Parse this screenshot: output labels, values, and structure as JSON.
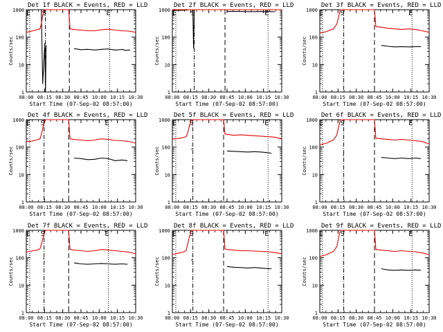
{
  "figure": {
    "xlabel": "Start Time (07-Sep-02 08:57:00)",
    "ylabel": "Counts/sec",
    "x_tick_labels": [
      "08:00",
      "08:15",
      "08:30",
      "08:45",
      "10:00",
      "10:15",
      "10:30"
    ],
    "y_tick_labels": [
      "1",
      "10",
      "100",
      "1000"
    ],
    "marker_labels": [
      "E",
      "S",
      "E"
    ],
    "colors": {
      "events": "#000000",
      "lld": "#e00000",
      "axes": "#000000"
    }
  },
  "chart_data": [
    {
      "type": "line",
      "title": "Det 1f BLACK = Events, RED = LLD",
      "ylim": [
        1,
        1000
      ],
      "y_scale": "log",
      "x_range_minutes": [
        0,
        160
      ],
      "markers": {
        "dotted": [
          5,
          122
        ],
        "dashdot": [
          28
        ],
        "dashed": [
          63
        ]
      },
      "series": [
        {
          "name": "Events",
          "color": "#000000",
          "x": [
            0,
            2,
            20,
            22,
            24,
            27,
            28,
            29,
            63,
            64,
            70,
            80,
            90,
            100,
            110,
            120,
            130,
            138,
            140,
            145,
            150,
            152
          ],
          "y": [
            1000,
            1000,
            1000,
            1000,
            2,
            60,
            1,
            50,
            null,
            null,
            38,
            35,
            36,
            34,
            36,
            37,
            34,
            35,
            36,
            33,
            34,
            34
          ]
        },
        {
          "name": "LLD",
          "color": "#e00000",
          "x": [
            0,
            5,
            10,
            15,
            20,
            22,
            24,
            26,
            28,
            30,
            40,
            50,
            60,
            62,
            64,
            70,
            80,
            90,
            100,
            110,
            120,
            130,
            140,
            150,
            160
          ],
          "y": [
            150,
            160,
            170,
            185,
            200,
            300,
            600,
            1000,
            1000,
            1000,
            1000,
            1000,
            1000,
            1000,
            200,
            190,
            180,
            170,
            170,
            185,
            195,
            180,
            170,
            165,
            150
          ]
        }
      ]
    },
    {
      "type": "line",
      "title": "Det 2f BLACK = Events, RED = LLD",
      "ylim": [
        1,
        1000
      ],
      "y_scale": "log",
      "x_range_minutes": [
        0,
        160
      ],
      "markers": {
        "dotted": [
          5,
          140
        ],
        "dashdot": [
          32
        ],
        "dashed": [
          77
        ]
      },
      "series": [
        {
          "name": "Events",
          "color": "#000000",
          "x": [
            0,
            10,
            20,
            25,
            28,
            30,
            31,
            32,
            33,
            77,
            78,
            80,
            90,
            100,
            110,
            120,
            130,
            140,
            145,
            150
          ],
          "y": [
            950,
            950,
            960,
            1000,
            1000,
            1000,
            40,
            1000,
            1000,
            null,
            null,
            870,
            860,
            860,
            850,
            850,
            860,
            850,
            850,
            840
          ]
        },
        {
          "name": "LLD",
          "color": "#e00000",
          "x": [
            0,
            10,
            20,
            25,
            28,
            30,
            40,
            50,
            60,
            70,
            77,
            80,
            90,
            100,
            110,
            120,
            130,
            140,
            150,
            160
          ],
          "y": [
            1000,
            1000,
            1000,
            1000,
            1000,
            1000,
            1000,
            1000,
            1000,
            1000,
            1000,
            1000,
            1000,
            1000,
            1000,
            1000,
            1000,
            1000,
            1000,
            1000
          ]
        }
      ]
    },
    {
      "type": "line",
      "title": "Det 3f BLACK = Events, RED = LLD",
      "ylim": [
        1,
        1000
      ],
      "y_scale": "log",
      "x_range_minutes": [
        0,
        160
      ],
      "markers": {
        "dotted": [
          4,
          135
        ],
        "dashdot": [
          35
        ],
        "dashed": [
          80
        ]
      },
      "series": [
        {
          "name": "Events",
          "color": "#000000",
          "x": [
            34,
            35,
            80,
            82,
            90,
            100,
            110,
            120,
            130,
            140,
            148
          ],
          "y": [
            60,
            55,
            null,
            null,
            50,
            46,
            44,
            45,
            44,
            45,
            45
          ]
        },
        {
          "name": "LLD",
          "color": "#e00000",
          "x": [
            0,
            5,
            10,
            15,
            20,
            25,
            28,
            30,
            35,
            40,
            50,
            60,
            70,
            80,
            82,
            90,
            100,
            110,
            120,
            130,
            140,
            150,
            160
          ],
          "y": [
            140,
            150,
            160,
            180,
            200,
            300,
            600,
            1000,
            1000,
            1000,
            1000,
            1000,
            1000,
            1000,
            240,
            230,
            210,
            200,
            190,
            200,
            190,
            170,
            150
          ]
        }
      ]
    },
    {
      "type": "line",
      "title": "Det 4f BLACK = Events, RED = LLD",
      "ylim": [
        1,
        1000
      ],
      "y_scale": "log",
      "x_range_minutes": [
        0,
        160
      ],
      "markers": {
        "dotted": [
          5,
          120
        ],
        "dashdot": [
          26
        ],
        "dashed": [
          62
        ]
      },
      "series": [
        {
          "name": "Events",
          "color": "#000000",
          "x": [
            25,
            26,
            62,
            64,
            70,
            80,
            90,
            100,
            110,
            120,
            130,
            140,
            148
          ],
          "y": [
            60,
            55,
            null,
            null,
            40,
            38,
            35,
            36,
            40,
            38,
            32,
            34,
            32
          ]
        },
        {
          "name": "LLD",
          "color": "#e00000",
          "x": [
            0,
            5,
            10,
            15,
            20,
            22,
            25,
            28,
            30,
            40,
            50,
            60,
            62,
            64,
            70,
            80,
            90,
            100,
            110,
            120,
            130,
            140,
            150,
            160
          ],
          "y": [
            160,
            160,
            170,
            180,
            200,
            280,
            600,
            1000,
            1000,
            1000,
            1000,
            1000,
            1000,
            200,
            190,
            180,
            170,
            180,
            200,
            190,
            175,
            170,
            160,
            140
          ]
        }
      ]
    },
    {
      "type": "line",
      "title": "Det 5f BLACK = Events, RED = LLD",
      "ylim": [
        1,
        1000
      ],
      "y_scale": "log",
      "x_range_minutes": [
        0,
        160
      ],
      "markers": {
        "dotted": [
          5,
          140
        ],
        "dashdot": [
          30
        ],
        "dashed": [
          75
        ]
      },
      "series": [
        {
          "name": "Events",
          "color": "#000000",
          "x": [
            28,
            30,
            75,
            77,
            80,
            90,
            100,
            110,
            120,
            130,
            140,
            145
          ],
          "y": [
            80,
            90,
            null,
            null,
            72,
            70,
            68,
            66,
            68,
            66,
            62,
            60
          ]
        },
        {
          "name": "LLD",
          "color": "#e00000",
          "x": [
            0,
            5,
            10,
            15,
            20,
            22,
            25,
            28,
            30,
            40,
            50,
            60,
            70,
            75,
            77,
            80,
            90,
            100,
            110,
            120,
            130,
            140,
            150,
            160
          ],
          "y": [
            200,
            200,
            210,
            220,
            240,
            300,
            600,
            1000,
            1000,
            1000,
            1000,
            1000,
            1000,
            1000,
            300,
            290,
            270,
            280,
            270,
            260,
            250,
            240,
            230,
            200
          ]
        }
      ]
    },
    {
      "type": "line",
      "title": "Det 6f BLACK = Events, RED = LLD",
      "ylim": [
        1,
        1000
      ],
      "y_scale": "log",
      "x_range_minutes": [
        0,
        160
      ],
      "markers": {
        "dotted": [
          4,
          135
        ],
        "dashdot": [
          35
        ],
        "dashed": [
          80
        ]
      },
      "series": [
        {
          "name": "Events",
          "color": "#000000",
          "x": [
            34,
            35,
            80,
            82,
            90,
            100,
            110,
            120,
            130,
            140,
            148
          ],
          "y": [
            55,
            50,
            null,
            null,
            42,
            40,
            38,
            40,
            38,
            40,
            38
          ]
        },
        {
          "name": "LLD",
          "color": "#e00000",
          "x": [
            0,
            5,
            10,
            15,
            20,
            25,
            28,
            30,
            35,
            40,
            50,
            60,
            70,
            80,
            82,
            90,
            100,
            110,
            120,
            130,
            140,
            150,
            160
          ],
          "y": [
            120,
            130,
            140,
            160,
            180,
            280,
            600,
            1000,
            1000,
            1000,
            1000,
            1000,
            1000,
            1000,
            210,
            200,
            190,
            180,
            190,
            180,
            170,
            160,
            130
          ]
        }
      ]
    },
    {
      "type": "line",
      "title": "Det 7f BLACK = Events, RED = LLD",
      "ylim": [
        1,
        1000
      ],
      "y_scale": "log",
      "x_range_minutes": [
        0,
        160
      ],
      "markers": {
        "dotted": [
          5,
          120
        ],
        "dashdot": [
          26
        ],
        "dashed": [
          62
        ]
      },
      "series": [
        {
          "name": "Events",
          "color": "#000000",
          "x": [
            25,
            26,
            62,
            64,
            70,
            80,
            90,
            100,
            110,
            120,
            130,
            140,
            148
          ],
          "y": [
            100,
            90,
            null,
            null,
            65,
            60,
            58,
            60,
            62,
            60,
            58,
            60,
            58
          ]
        },
        {
          "name": "LLD",
          "color": "#e00000",
          "x": [
            0,
            5,
            10,
            15,
            20,
            22,
            25,
            28,
            30,
            40,
            50,
            60,
            62,
            64,
            70,
            80,
            90,
            100,
            110,
            120,
            130,
            140,
            150,
            160
          ],
          "y": [
            160,
            170,
            180,
            190,
            210,
            300,
            600,
            1000,
            1000,
            1000,
            1000,
            1000,
            1000,
            200,
            190,
            180,
            170,
            180,
            200,
            190,
            180,
            170,
            160,
            140
          ]
        }
      ]
    },
    {
      "type": "line",
      "title": "Det 8f BLACK = Events, RED = LLD",
      "ylim": [
        1,
        1000
      ],
      "y_scale": "log",
      "x_range_minutes": [
        0,
        160
      ],
      "markers": {
        "dotted": [
          5,
          140
        ],
        "dashdot": [
          30
        ],
        "dashed": [
          75
        ]
      },
      "series": [
        {
          "name": "Events",
          "color": "#000000",
          "x": [
            28,
            30,
            75,
            77,
            80,
            90,
            100,
            110,
            120,
            130,
            140,
            145
          ],
          "y": [
            80,
            90,
            null,
            null,
            48,
            45,
            44,
            42,
            44,
            42,
            40,
            40
          ]
        },
        {
          "name": "LLD",
          "color": "#e00000",
          "x": [
            0,
            5,
            10,
            15,
            20,
            22,
            25,
            28,
            30,
            40,
            50,
            60,
            70,
            75,
            77,
            80,
            90,
            100,
            110,
            120,
            130,
            140,
            150,
            160
          ],
          "y": [
            130,
            140,
            150,
            160,
            180,
            280,
            600,
            1000,
            1000,
            1000,
            1000,
            1000,
            1000,
            1000,
            210,
            200,
            190,
            180,
            180,
            175,
            170,
            165,
            155,
            140
          ]
        }
      ]
    },
    {
      "type": "line",
      "title": "Det 9f BLACK = Events, RED = LLD",
      "ylim": [
        1,
        1000
      ],
      "y_scale": "log",
      "x_range_minutes": [
        0,
        160
      ],
      "markers": {
        "dotted": [
          4,
          135
        ],
        "dashdot": [
          35
        ],
        "dashed": [
          80
        ]
      },
      "series": [
        {
          "name": "Events",
          "color": "#000000",
          "x": [
            34,
            35,
            80,
            82,
            90,
            100,
            110,
            120,
            130,
            140,
            148
          ],
          "y": [
            20,
            18,
            null,
            null,
            40,
            36,
            35,
            36,
            35,
            36,
            35
          ]
        },
        {
          "name": "LLD",
          "color": "#e00000",
          "x": [
            0,
            5,
            10,
            15,
            20,
            25,
            28,
            30,
            35,
            40,
            50,
            60,
            70,
            80,
            82,
            90,
            100,
            110,
            120,
            130,
            140,
            150,
            160
          ],
          "y": [
            110,
            120,
            130,
            150,
            170,
            260,
            600,
            1000,
            1000,
            1000,
            1000,
            1000,
            1000,
            1000,
            200,
            190,
            180,
            170,
            180,
            170,
            165,
            150,
            130
          ]
        }
      ]
    }
  ]
}
